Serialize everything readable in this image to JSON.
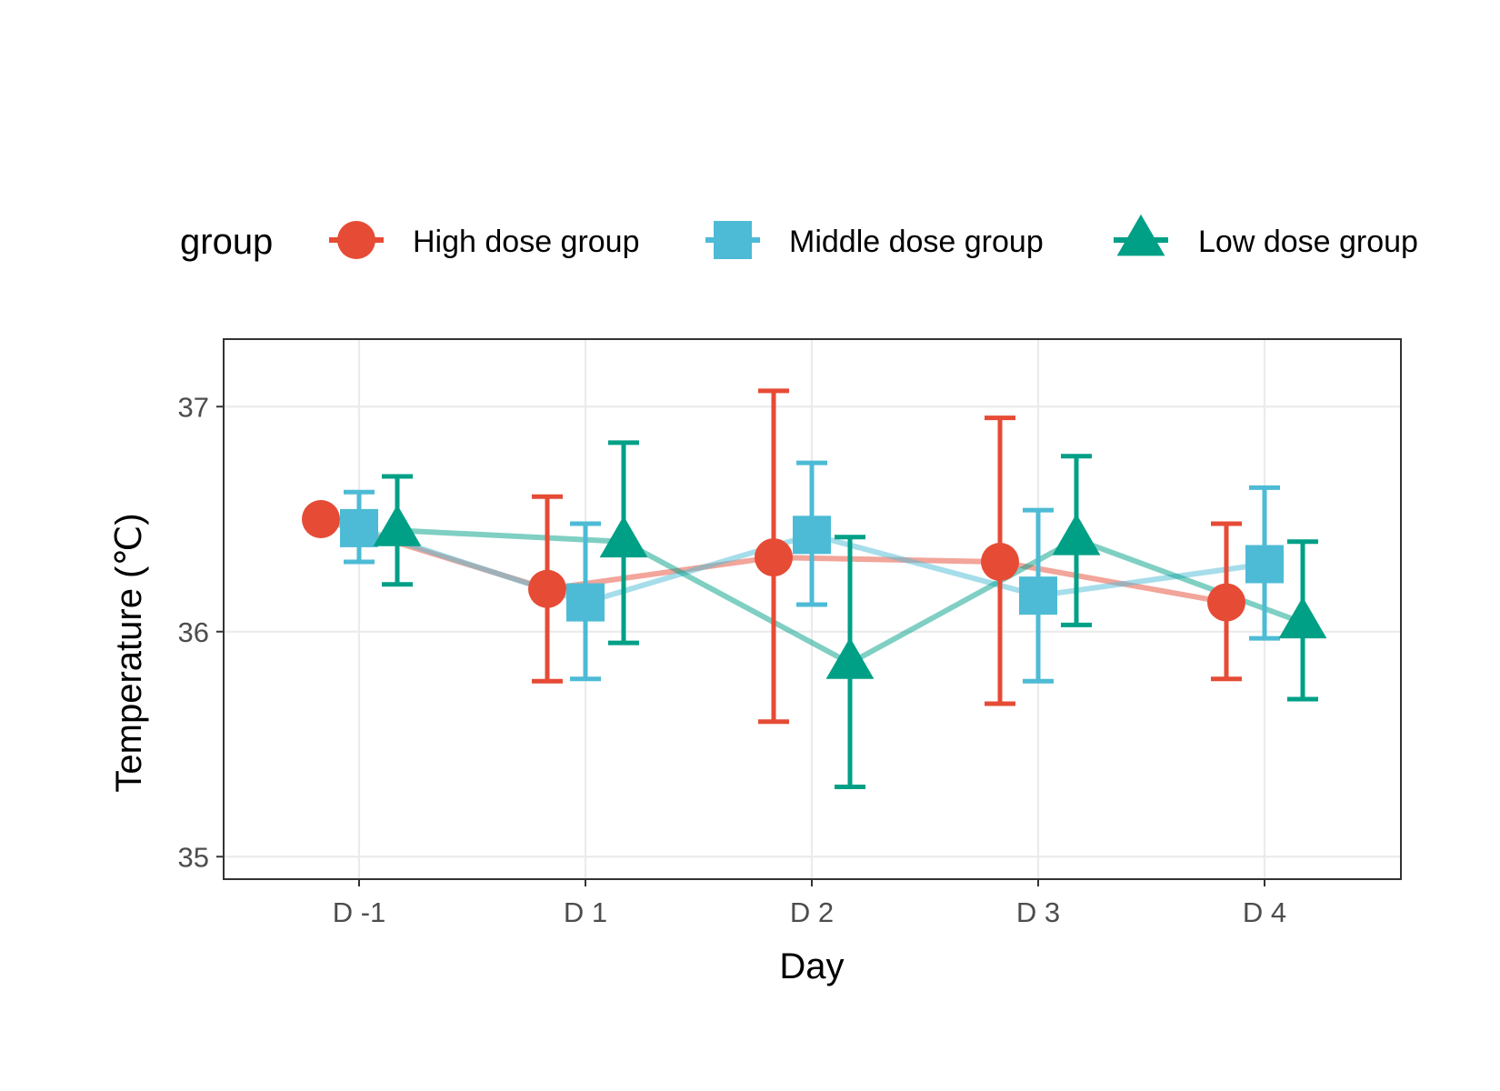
{
  "chart_data": {
    "type": "line",
    "title": "",
    "xlabel": "Day",
    "ylabel": "Temperature (℃)",
    "categories": [
      "D -1",
      "D 1",
      "D 2",
      "D 3",
      "D 4"
    ],
    "ylim": [
      34.9,
      37.3
    ],
    "yticks": [
      35,
      36,
      37
    ],
    "grid": true,
    "error_bars": true,
    "legend": {
      "title": "group",
      "position": "top"
    },
    "series": [
      {
        "name": "High dose group",
        "marker": "circle",
        "color": "#E64B35",
        "values": [
          36.5,
          36.19,
          36.33,
          36.31,
          36.13
        ],
        "err_low": [
          null,
          35.78,
          35.6,
          35.68,
          35.79
        ],
        "err_high": [
          null,
          36.6,
          37.07,
          36.95,
          36.48
        ]
      },
      {
        "name": "Middle dose group",
        "marker": "square",
        "color": "#4DBBD5",
        "values": [
          36.46,
          36.13,
          36.43,
          36.16,
          36.3
        ],
        "err_low": [
          36.31,
          35.79,
          36.12,
          35.78,
          35.97
        ],
        "err_high": [
          36.62,
          36.48,
          36.75,
          36.54,
          36.64
        ]
      },
      {
        "name": "Low dose group",
        "marker": "triangle",
        "color": "#00A087",
        "values": [
          36.45,
          36.4,
          35.86,
          36.41,
          36.04
        ],
        "err_low": [
          36.21,
          35.95,
          35.31,
          36.03,
          35.7
        ],
        "err_high": [
          36.69,
          36.84,
          36.42,
          36.78,
          36.4
        ]
      }
    ]
  }
}
